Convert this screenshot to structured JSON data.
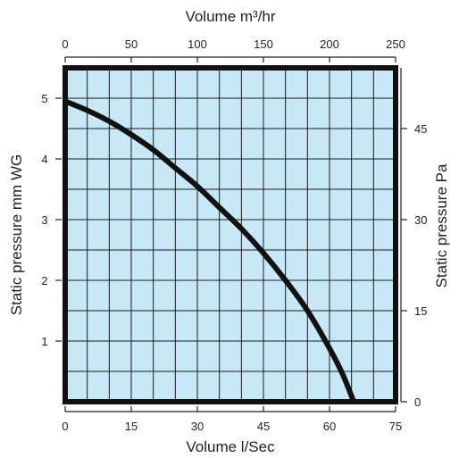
{
  "chart_data": {
    "type": "line",
    "title": "",
    "top_axis": {
      "label": "Volume m³/hr",
      "range": [
        0,
        250
      ],
      "ticks": [
        0,
        50,
        100,
        150,
        200,
        250
      ]
    },
    "bottom_axis": {
      "label": "Volume l/Sec",
      "range": [
        0,
        75
      ],
      "ticks": [
        0,
        15,
        30,
        45,
        60,
        75
      ]
    },
    "left_axis": {
      "label": "Static pressure mm WG",
      "range": [
        0,
        5.5
      ],
      "ticks": [
        1,
        2,
        3,
        4,
        5
      ]
    },
    "right_axis": {
      "label": "Static pressure Pa",
      "range": [
        0,
        55
      ],
      "ticks": [
        0,
        15,
        30,
        45
      ]
    },
    "grid": true,
    "colors": {
      "plot_bg": "#c8e8f8",
      "grid": "#1a1a1a",
      "curve": "#111111",
      "frame": "#111111"
    },
    "series": [
      {
        "x": [
          0,
          5,
          10,
          15,
          20,
          25,
          30,
          35,
          40,
          45,
          50,
          55,
          60,
          63,
          65.5
        ],
        "y": [
          4.95,
          4.8,
          4.62,
          4.4,
          4.15,
          3.85,
          3.55,
          3.2,
          2.85,
          2.45,
          2.0,
          1.5,
          0.88,
          0.45,
          0.0
        ]
      }
    ]
  }
}
